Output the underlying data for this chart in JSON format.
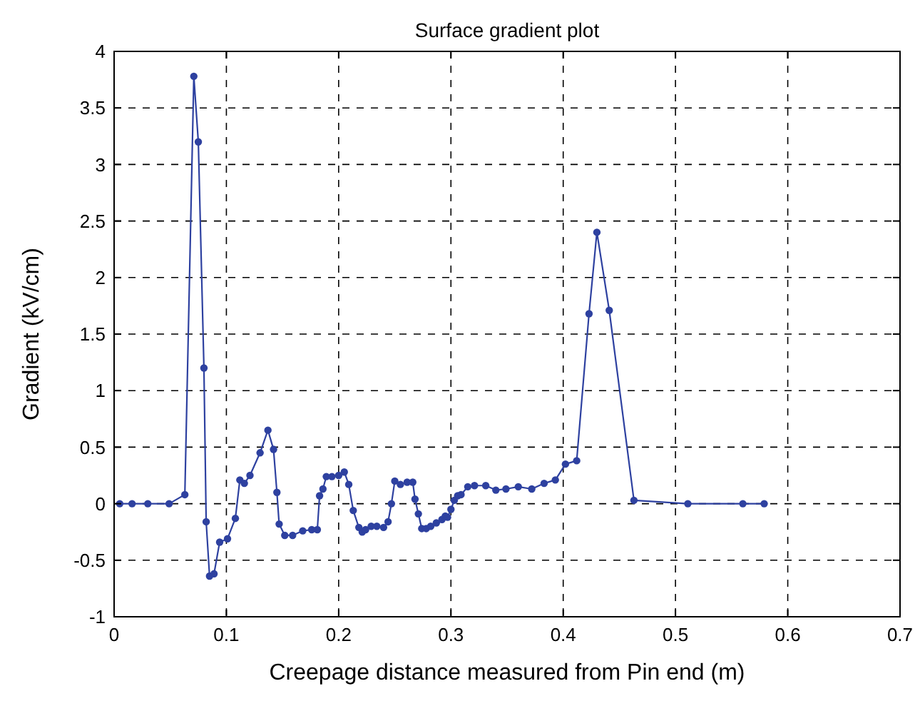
{
  "chart_data": {
    "type": "line",
    "title": "Surface gradient plot",
    "xlabel": "Creepage distance measured from Pin end (m)",
    "ylabel": "Gradient (kV/cm)",
    "xlim": [
      0,
      0.7
    ],
    "xticks": [
      0,
      0.1,
      0.2,
      0.3,
      0.4,
      0.5,
      0.6,
      0.7
    ],
    "ylim": [
      -1,
      4
    ],
    "yticks": [
      -1,
      -0.5,
      0,
      0.5,
      1,
      1.5,
      2,
      2.5,
      3,
      3.5,
      4
    ],
    "grid": true,
    "marker": "circle",
    "line_style": "solid",
    "series": [
      {
        "color": "#2e41a0",
        "x": [
          0.005,
          0.016,
          0.03,
          0.049,
          0.063,
          0.071,
          0.075,
          0.08,
          0.082,
          0.085,
          0.089,
          0.094,
          0.101,
          0.108,
          0.112,
          0.116,
          0.121,
          0.13,
          0.137,
          0.142,
          0.145,
          0.147,
          0.152,
          0.159,
          0.168,
          0.176,
          0.181,
          0.183,
          0.186,
          0.189,
          0.194,
          0.2,
          0.205,
          0.209,
          0.213,
          0.218,
          0.221,
          0.224,
          0.229,
          0.234,
          0.24,
          0.244,
          0.247,
          0.25,
          0.255,
          0.261,
          0.266,
          0.268,
          0.271,
          0.274,
          0.278,
          0.282,
          0.287,
          0.292,
          0.295,
          0.297,
          0.3,
          0.303,
          0.306,
          0.309,
          0.315,
          0.321,
          0.331,
          0.34,
          0.349,
          0.36,
          0.372,
          0.383,
          0.393,
          0.402,
          0.412,
          0.423,
          0.43,
          0.441,
          0.463,
          0.511,
          0.56,
          0.579
        ],
        "values": [
          0,
          0,
          0,
          0,
          0.08,
          3.78,
          3.2,
          1.2,
          -0.16,
          -0.64,
          -0.62,
          -0.34,
          -0.31,
          -0.13,
          0.21,
          0.18,
          0.25,
          0.45,
          0.65,
          0.48,
          0.1,
          -0.18,
          -0.28,
          -0.28,
          -0.24,
          -0.23,
          -0.23,
          0.07,
          0.13,
          0.24,
          0.24,
          0.25,
          0.28,
          0.17,
          -0.06,
          -0.21,
          -0.25,
          -0.23,
          -0.2,
          -0.2,
          -0.21,
          -0.16,
          0,
          0.2,
          0.17,
          0.19,
          0.19,
          0.04,
          -0.09,
          -0.22,
          -0.22,
          -0.2,
          -0.17,
          -0.14,
          -0.11,
          -0.12,
          -0.05,
          0.03,
          0.07,
          0.08,
          0.15,
          0.16,
          0.16,
          0.12,
          0.13,
          0.15,
          0.13,
          0.18,
          0.21,
          0.35,
          0.38,
          1.68,
          2.4,
          1.71,
          0.03,
          0,
          0,
          0
        ]
      }
    ]
  }
}
